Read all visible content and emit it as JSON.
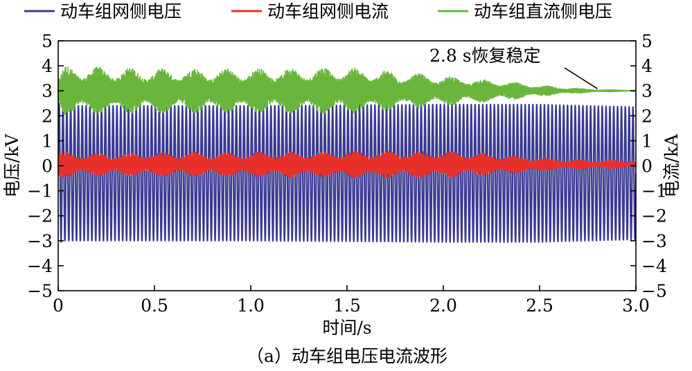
{
  "chart_data": {
    "type": "line",
    "legend_position": "top",
    "xlabel": "时间/s",
    "ylabel_left": "电压/kV",
    "ylabel_right": "电流/kA",
    "caption": "（a）动车组电压电流波形",
    "annotation": "2.8 s恢复稳定",
    "xlim": [
      0,
      3.0
    ],
    "ylim": [
      -5,
      5
    ],
    "x_ticks": [
      "0",
      "0.5",
      "1.0",
      "1.5",
      "2.0",
      "2.5",
      "3.0"
    ],
    "y_ticks": [
      "5",
      "4",
      "3",
      "2",
      "1",
      "0",
      "−1",
      "−2",
      "−3",
      "−4",
      "−5"
    ],
    "series": [
      {
        "name": "动车组网侧电压",
        "color": "#3b3a92",
        "axis": "left",
        "style": "ac_sine",
        "frequency_hz": 50,
        "offset": -0.3,
        "amplitude": [
          [
            0,
            2.8
          ],
          [
            0.03,
            2.7
          ],
          [
            1.0,
            2.7
          ],
          [
            2.0,
            2.75
          ],
          [
            2.5,
            2.75
          ],
          [
            3.0,
            2.65
          ]
        ],
        "anchor_points": [
          [
            0,
            0
          ],
          [
            0.5,
            -3.0
          ],
          [
            1.0,
            -3.0
          ],
          [
            2.0,
            -3.0
          ],
          [
            3.0,
            -2.7
          ]
        ]
      },
      {
        "name": "动车组网侧电流",
        "color": "#e8302a",
        "axis": "right",
        "style": "noisy_band",
        "center": 0.05,
        "amplitude": [
          [
            0,
            0.55
          ],
          [
            0.1,
            0.45
          ],
          [
            0.5,
            0.5
          ],
          [
            1.0,
            0.5
          ],
          [
            1.5,
            0.55
          ],
          [
            2.0,
            0.55
          ],
          [
            2.3,
            0.4
          ],
          [
            2.6,
            0.2
          ],
          [
            3.0,
            0.15
          ]
        ],
        "anchor_points": [
          [
            0.1,
            0.7
          ],
          [
            0.5,
            -0.7
          ],
          [
            1.0,
            0.6
          ],
          [
            2.0,
            -0.6
          ],
          [
            3.0,
            0.1
          ]
        ]
      },
      {
        "name": "动车组直流侧电压",
        "color": "#6ab63d",
        "axis": "left",
        "style": "noisy_band",
        "center": 3.0,
        "amplitude": [
          [
            0,
            0.5
          ],
          [
            0.03,
            1.0
          ],
          [
            0.5,
            0.9
          ],
          [
            1.0,
            0.9
          ],
          [
            1.5,
            0.95
          ],
          [
            2.0,
            0.6
          ],
          [
            2.3,
            0.4
          ],
          [
            2.6,
            0.15
          ],
          [
            2.8,
            0.05
          ],
          [
            3.0,
            0.02
          ]
        ],
        "anchor_points": [
          [
            0.05,
            4.1
          ],
          [
            1.0,
            2.0
          ],
          [
            2.8,
            3.0
          ],
          [
            3.0,
            3.0
          ]
        ]
      }
    ]
  }
}
